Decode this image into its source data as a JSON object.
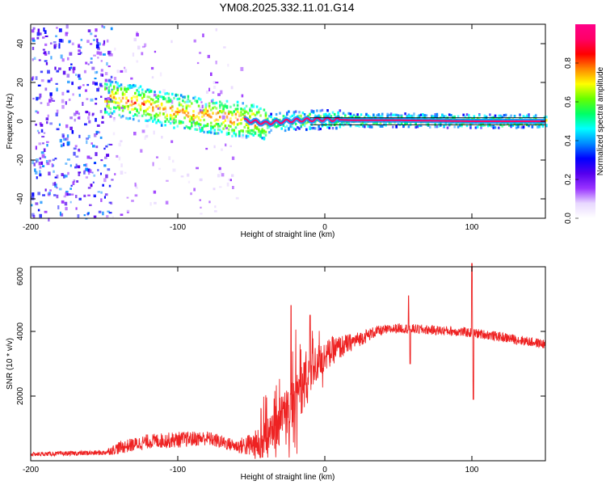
{
  "title": "YM08.2025.332.11.01.G14",
  "chart_data": [
    {
      "type": "heatmap",
      "name": "spectrogram",
      "xlabel": "Height of straight line (km)",
      "ylabel": "Frequency (Hz)",
      "xlim": [
        -200,
        150
      ],
      "ylim": [
        -50,
        50
      ],
      "xticks": [
        -200,
        -100,
        0,
        100
      ],
      "yticks": [
        -40,
        -20,
        0,
        20,
        40
      ],
      "colorbar": {
        "label": "Normalized spectral amplitude",
        "range": [
          0,
          1
        ],
        "ticks": [
          "0.0",
          "0.2",
          "0.4",
          "0.6",
          "0.8"
        ],
        "colors": [
          "#ffffff",
          "#e8d8ff",
          "#9933ff",
          "#5500ee",
          "#0000ff",
          "#0088ff",
          "#00ffff",
          "#00ff66",
          "#66ff00",
          "#ffff00",
          "#ff8800",
          "#ff0000",
          "#ff0066",
          "#ff0088"
        ]
      },
      "ridge": [
        {
          "x": -145,
          "f": 12
        },
        {
          "x": -120,
          "f": 8
        },
        {
          "x": -100,
          "f": 5
        },
        {
          "x": -80,
          "f": 3
        },
        {
          "x": -60,
          "f": 1
        },
        {
          "x": -40,
          "f": -1
        },
        {
          "x": -20,
          "f": 0.5
        },
        {
          "x": 0,
          "f": 1
        },
        {
          "x": 20,
          "f": 0.5
        },
        {
          "x": 50,
          "f": 0.5
        },
        {
          "x": 80,
          "f": 0.2
        },
        {
          "x": 100,
          "f": 0
        },
        {
          "x": 150,
          "f": 0
        }
      ]
    },
    {
      "type": "line",
      "name": "snr",
      "xlabel": "Height of straight line (km)",
      "ylabel": "SNR (10 * v/v)",
      "xlim": [
        -200,
        150
      ],
      "ylim": [
        0,
        6000
      ],
      "xticks": [
        -200,
        -100,
        0,
        100
      ],
      "yticks": [
        2000,
        4000,
        6000
      ],
      "color": "#ee2222",
      "envelope": [
        {
          "x": -200,
          "y": 200
        },
        {
          "x": -150,
          "y": 250
        },
        {
          "x": -140,
          "y": 400
        },
        {
          "x": -120,
          "y": 600
        },
        {
          "x": -100,
          "y": 650
        },
        {
          "x": -80,
          "y": 700
        },
        {
          "x": -60,
          "y": 450
        },
        {
          "x": -45,
          "y": 500
        },
        {
          "x": -35,
          "y": 900
        },
        {
          "x": -25,
          "y": 1600
        },
        {
          "x": -15,
          "y": 2300
        },
        {
          "x": -5,
          "y": 3000
        },
        {
          "x": 5,
          "y": 3400
        },
        {
          "x": 15,
          "y": 3600
        },
        {
          "x": 25,
          "y": 3800
        },
        {
          "x": 35,
          "y": 4000
        },
        {
          "x": 50,
          "y": 4100
        },
        {
          "x": 70,
          "y": 4050
        },
        {
          "x": 90,
          "y": 4000
        },
        {
          "x": 110,
          "y": 3900
        },
        {
          "x": 130,
          "y": 3750
        },
        {
          "x": 150,
          "y": 3600
        }
      ],
      "noise": [
        {
          "x": -200,
          "y": 60
        },
        {
          "x": -150,
          "y": 80
        },
        {
          "x": -140,
          "y": 200
        },
        {
          "x": -100,
          "y": 250
        },
        {
          "x": -60,
          "y": 200
        },
        {
          "x": -40,
          "y": 600
        },
        {
          "x": -20,
          "y": 900
        },
        {
          "x": 0,
          "y": 500
        },
        {
          "x": 20,
          "y": 250
        },
        {
          "x": 40,
          "y": 150
        },
        {
          "x": 150,
          "y": 150
        }
      ],
      "spikes": [
        {
          "x": -23,
          "y": 4800
        },
        {
          "x": -10,
          "y": 4500
        },
        {
          "x": 57,
          "y": 5100
        },
        {
          "x": 58,
          "y": 3000
        },
        {
          "x": 100,
          "y": 6100
        },
        {
          "x": 101,
          "y": 1900
        }
      ]
    }
  ]
}
